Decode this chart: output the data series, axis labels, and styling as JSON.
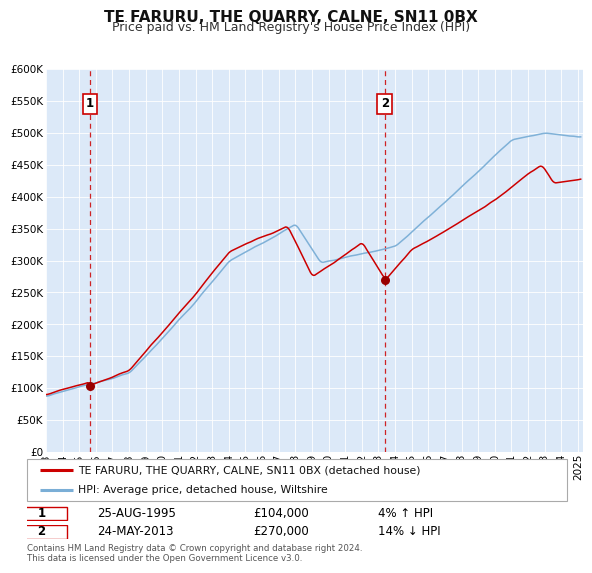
{
  "title": "TE FARURU, THE QUARRY, CALNE, SN11 0BX",
  "subtitle": "Price paid vs. HM Land Registry's House Price Index (HPI)",
  "ylim": [
    0,
    600000
  ],
  "xlim_start": 1993.0,
  "xlim_end": 2025.3,
  "yticks": [
    0,
    50000,
    100000,
    150000,
    200000,
    250000,
    300000,
    350000,
    400000,
    450000,
    500000,
    550000,
    600000
  ],
  "ytick_labels": [
    "£0",
    "£50K",
    "£100K",
    "£150K",
    "£200K",
    "£250K",
    "£300K",
    "£350K",
    "£400K",
    "£450K",
    "£500K",
    "£550K",
    "£600K"
  ],
  "xticks": [
    1993,
    1994,
    1995,
    1996,
    1997,
    1998,
    1999,
    2000,
    2001,
    2002,
    2003,
    2004,
    2005,
    2006,
    2007,
    2008,
    2009,
    2010,
    2011,
    2012,
    2013,
    2014,
    2015,
    2016,
    2017,
    2018,
    2019,
    2020,
    2021,
    2022,
    2023,
    2024,
    2025
  ],
  "bg_color": "#dce9f8",
  "grid_color": "#ffffff",
  "red_line_color": "#cc0000",
  "blue_line_color": "#7aaed6",
  "marker_color": "#990000",
  "sale1_x": 1995.646,
  "sale1_y": 104000,
  "sale1_label": "1",
  "sale1_date": "25-AUG-1995",
  "sale1_price": "£104,000",
  "sale1_hpi": "4% ↑ HPI",
  "sale2_x": 2013.388,
  "sale2_y": 270000,
  "sale2_label": "2",
  "sale2_date": "24-MAY-2013",
  "sale2_price": "£270,000",
  "sale2_hpi": "14% ↓ HPI",
  "legend_line1": "TE FARURU, THE QUARRY, CALNE, SN11 0BX (detached house)",
  "legend_line2": "HPI: Average price, detached house, Wiltshire",
  "footnote": "Contains HM Land Registry data © Crown copyright and database right 2024.\nThis data is licensed under the Open Government Licence v3.0.",
  "title_fontsize": 11,
  "subtitle_fontsize": 9
}
